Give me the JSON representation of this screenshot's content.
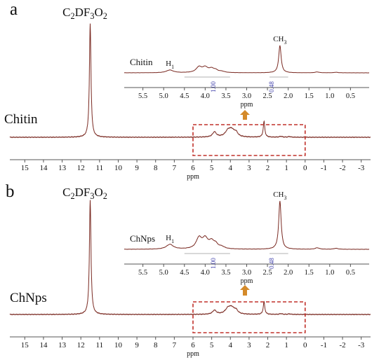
{
  "colors": {
    "spectrum": "#7a2a22",
    "axis": "#555555",
    "box": "#c0302a",
    "arrow": "#d48a2a",
    "integral": "#3b3ba8"
  },
  "chart_data": [
    {
      "type": "line",
      "panel_label": "a",
      "sample_label": "Chitin",
      "solvent_label": "C2DF3O2",
      "xlabel": "ppm",
      "xlim": [
        15.8,
        -3.5
      ],
      "x_reversed": true,
      "xticks": [
        15,
        14,
        13,
        12,
        11,
        10,
        9,
        8,
        7,
        6,
        5,
        4,
        3,
        2,
        1,
        0,
        -1,
        -2,
        -3
      ],
      "peaks": [
        {
          "x": 11.5,
          "height": 1.0,
          "width": 0.05
        },
        {
          "x": 4.85,
          "height": 0.045,
          "width": 0.12
        },
        {
          "x": 4.12,
          "height": 0.055,
          "width": 0.18
        },
        {
          "x": 3.92,
          "height": 0.05,
          "width": 0.16
        },
        {
          "x": 3.7,
          "height": 0.035,
          "width": 0.12
        },
        {
          "x": 2.2,
          "height": 0.14,
          "width": 0.05
        },
        {
          "x": 1.3,
          "height": 0.008,
          "width": 0.08
        },
        {
          "x": 0.85,
          "height": 0.006,
          "width": 0.08
        }
      ],
      "zoom_box_ppm": [
        6.0,
        0.0
      ],
      "inset": {
        "sample_label": "Chitin",
        "xlabel": "ppm",
        "xlim": [
          5.95,
          0.05
        ],
        "xticks": [
          5.5,
          5.0,
          4.5,
          4.0,
          3.5,
          3.0,
          2.5,
          2.0,
          1.5,
          1.0,
          0.5
        ],
        "peak_labels": [
          {
            "text": "H1",
            "x": 4.85
          },
          {
            "text": "CH3",
            "x": 2.2
          }
        ],
        "integrals": [
          {
            "text": "1.00",
            "x": 3.75
          },
          {
            "text": "0.48",
            "x": 2.35
          }
        ],
        "peaks": [
          {
            "x": 4.85,
            "height": 0.1,
            "width": 0.1
          },
          {
            "x": 4.15,
            "height": 0.2,
            "width": 0.08
          },
          {
            "x": 4.0,
            "height": 0.18,
            "width": 0.08
          },
          {
            "x": 3.85,
            "height": 0.12,
            "width": 0.07
          },
          {
            "x": 3.75,
            "height": 0.08,
            "width": 0.07
          },
          {
            "x": 3.6,
            "height": 0.04,
            "width": 0.08
          },
          {
            "x": 2.2,
            "height": 1.0,
            "width": 0.035
          },
          {
            "x": 1.3,
            "height": 0.03,
            "width": 0.06
          },
          {
            "x": 0.85,
            "height": 0.02,
            "width": 0.06
          }
        ]
      }
    },
    {
      "type": "line",
      "panel_label": "b",
      "sample_label": "ChNps",
      "solvent_label": "C2DF3O2",
      "xlabel": "ppm",
      "xlim": [
        15.8,
        -3.5
      ],
      "x_reversed": true,
      "xticks": [
        15,
        14,
        13,
        12,
        11,
        10,
        9,
        8,
        7,
        6,
        5,
        4,
        3,
        2,
        1,
        0,
        -1,
        -2,
        -3
      ],
      "peaks": [
        {
          "x": 11.5,
          "height": 1.0,
          "width": 0.05
        },
        {
          "x": 4.85,
          "height": 0.035,
          "width": 0.12
        },
        {
          "x": 4.12,
          "height": 0.05,
          "width": 0.18
        },
        {
          "x": 3.92,
          "height": 0.045,
          "width": 0.16
        },
        {
          "x": 3.7,
          "height": 0.03,
          "width": 0.12
        },
        {
          "x": 2.2,
          "height": 0.11,
          "width": 0.05
        },
        {
          "x": 1.3,
          "height": 0.007,
          "width": 0.08
        },
        {
          "x": 0.85,
          "height": 0.005,
          "width": 0.08
        }
      ],
      "zoom_box_ppm": [
        6.0,
        0.0
      ],
      "inset": {
        "sample_label": "ChNps",
        "xlabel": "ppm",
        "xlim": [
          5.95,
          0.05
        ],
        "xticks": [
          5.5,
          5.0,
          4.5,
          4.0,
          3.5,
          3.0,
          2.5,
          2.0,
          1.5,
          1.0,
          0.5
        ],
        "peak_labels": [
          {
            "text": "H1",
            "x": 4.85
          },
          {
            "text": "CH3",
            "x": 2.2
          }
        ],
        "integrals": [
          {
            "text": "1.00",
            "x": 3.75
          },
          {
            "text": "0.48",
            "x": 2.35
          }
        ],
        "peaks": [
          {
            "x": 4.85,
            "height": 0.1,
            "width": 0.1
          },
          {
            "x": 4.15,
            "height": 0.22,
            "width": 0.08
          },
          {
            "x": 4.0,
            "height": 0.2,
            "width": 0.08
          },
          {
            "x": 3.85,
            "height": 0.13,
            "width": 0.07
          },
          {
            "x": 3.75,
            "height": 0.09,
            "width": 0.07
          },
          {
            "x": 3.6,
            "height": 0.04,
            "width": 0.08
          },
          {
            "x": 2.2,
            "height": 1.0,
            "width": 0.035
          },
          {
            "x": 1.3,
            "height": 0.03,
            "width": 0.06
          },
          {
            "x": 0.85,
            "height": 0.02,
            "width": 0.06
          }
        ]
      }
    }
  ]
}
